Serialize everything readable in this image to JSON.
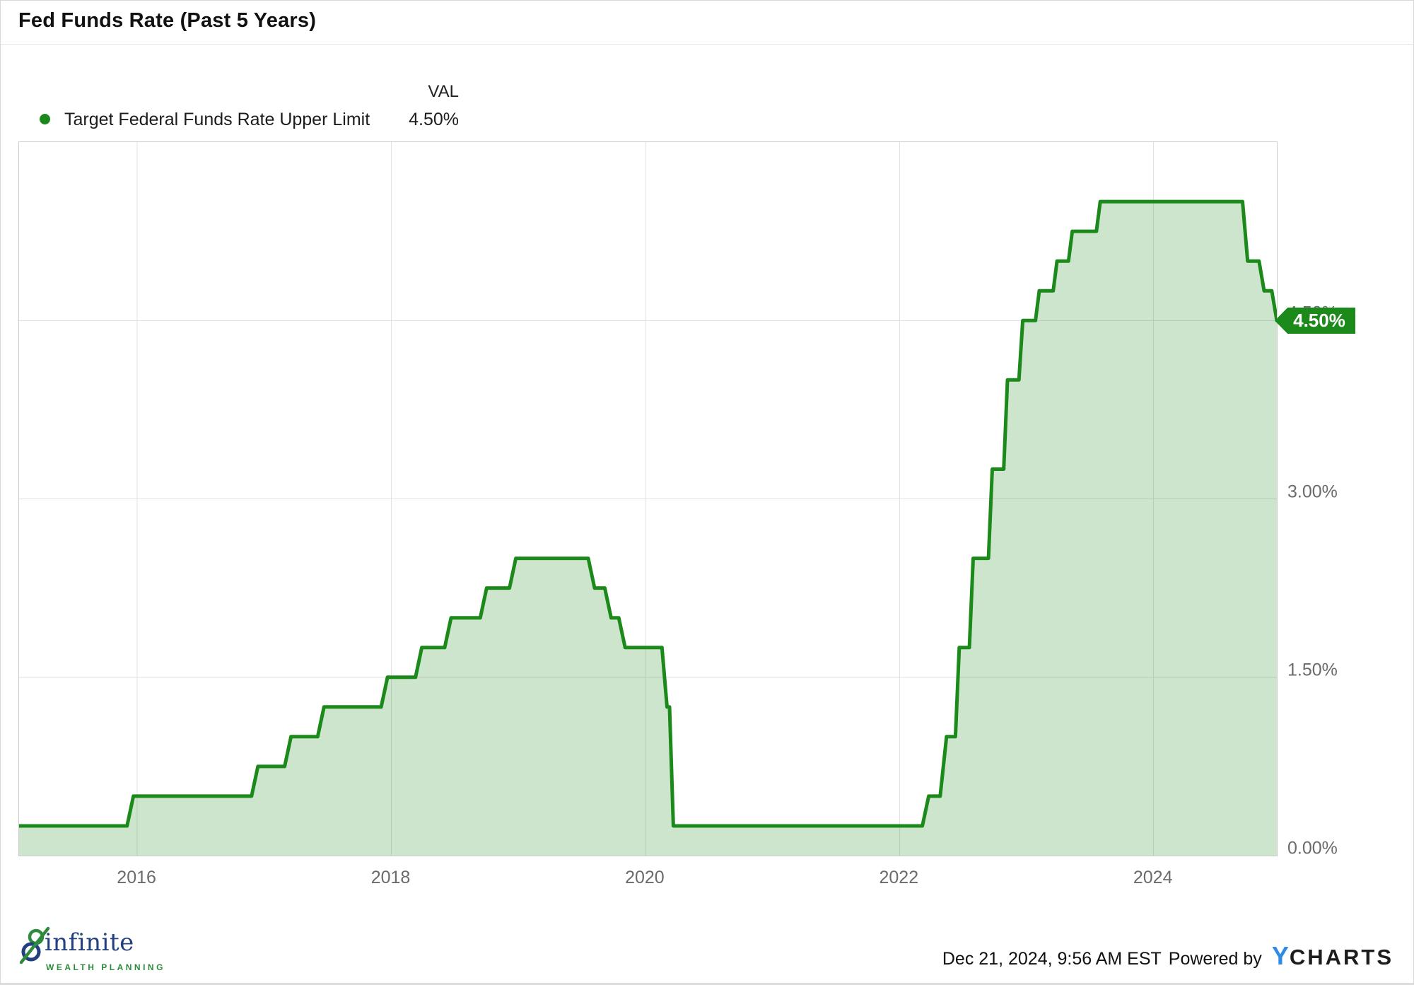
{
  "header": {
    "title": "Fed Funds Rate (Past 5 Years)"
  },
  "legend": {
    "columns": {
      "val": "VAL"
    },
    "series": {
      "label": "Target Federal Funds Rate Upper Limit",
      "val": "4.50%"
    }
  },
  "callout": {
    "label": "4.50%"
  },
  "footer": {
    "logo": {
      "wordmark": "infinite",
      "tagline": "WEALTH PLANNING"
    },
    "attribution": {
      "timestamp": "Dec 21, 2024, 9:56 AM EST",
      "powered_by": "Powered by",
      "brand_y": "Y",
      "brand_charts": "CHARTS"
    }
  },
  "colors": {
    "accent": "#1b8a1b",
    "area": "rgba(27,138,27,0.22)",
    "navy": "#223f7e",
    "logo_green": "#2e8b3e",
    "ycharts_blue": "#2f8be4"
  },
  "chart_data": {
    "type": "area",
    "title": "Fed Funds Rate (Past 5 Years)",
    "series_name": "Target Federal Funds Rate Upper Limit",
    "unit": "%",
    "current_value": 4.5,
    "as_of": "Dec 21, 2024, 9:56 AM EST",
    "x_domain": [
      2015.07,
      2024.97
    ],
    "y_domain": [
      0,
      6.0
    ],
    "grid": true,
    "legend_position": "top-left",
    "line_color": "#1b8a1b",
    "fill_color": "rgba(27,138,27,0.22)",
    "x_ticks": [
      {
        "t": 2016,
        "label": "2016"
      },
      {
        "t": 2018,
        "label": "2018"
      },
      {
        "t": 2020,
        "label": "2020"
      },
      {
        "t": 2022,
        "label": "2022"
      },
      {
        "t": 2024,
        "label": "2024"
      }
    ],
    "y_ticks": [
      {
        "v": 0.0,
        "label": "0.00%"
      },
      {
        "v": 1.5,
        "label": "1.50%"
      },
      {
        "v": 3.0,
        "label": "3.00%"
      },
      {
        "v": 4.5,
        "label": "4.50%"
      }
    ],
    "points": [
      [
        2015.07,
        0.25
      ],
      [
        2015.92,
        0.25
      ],
      [
        2015.97,
        0.5
      ],
      [
        2016.9,
        0.5
      ],
      [
        2016.95,
        0.75
      ],
      [
        2017.16,
        0.75
      ],
      [
        2017.21,
        1.0
      ],
      [
        2017.42,
        1.0
      ],
      [
        2017.47,
        1.25
      ],
      [
        2017.92,
        1.25
      ],
      [
        2017.97,
        1.5
      ],
      [
        2018.19,
        1.5
      ],
      [
        2018.24,
        1.75
      ],
      [
        2018.42,
        1.75
      ],
      [
        2018.47,
        2.0
      ],
      [
        2018.7,
        2.0
      ],
      [
        2018.75,
        2.25
      ],
      [
        2018.93,
        2.25
      ],
      [
        2018.98,
        2.5
      ],
      [
        2019.55,
        2.5
      ],
      [
        2019.6,
        2.25
      ],
      [
        2019.68,
        2.25
      ],
      [
        2019.73,
        2.0
      ],
      [
        2019.79,
        2.0
      ],
      [
        2019.84,
        1.75
      ],
      [
        2020.13,
        1.75
      ],
      [
        2020.17,
        1.25
      ],
      [
        2020.19,
        1.25
      ],
      [
        2020.22,
        0.25
      ],
      [
        2022.18,
        0.25
      ],
      [
        2022.23,
        0.5
      ],
      [
        2022.32,
        0.5
      ],
      [
        2022.37,
        1.0
      ],
      [
        2022.44,
        1.0
      ],
      [
        2022.47,
        1.75
      ],
      [
        2022.55,
        1.75
      ],
      [
        2022.58,
        2.5
      ],
      [
        2022.7,
        2.5
      ],
      [
        2022.73,
        3.25
      ],
      [
        2022.82,
        3.25
      ],
      [
        2022.85,
        4.0
      ],
      [
        2022.94,
        4.0
      ],
      [
        2022.97,
        4.5
      ],
      [
        2023.07,
        4.5
      ],
      [
        2023.1,
        4.75
      ],
      [
        2023.21,
        4.75
      ],
      [
        2023.24,
        5.0
      ],
      [
        2023.33,
        5.0
      ],
      [
        2023.36,
        5.25
      ],
      [
        2023.55,
        5.25
      ],
      [
        2023.58,
        5.5
      ],
      [
        2024.7,
        5.5
      ],
      [
        2024.74,
        5.0
      ],
      [
        2024.83,
        5.0
      ],
      [
        2024.87,
        4.75
      ],
      [
        2024.93,
        4.75
      ],
      [
        2024.97,
        4.5
      ]
    ]
  }
}
